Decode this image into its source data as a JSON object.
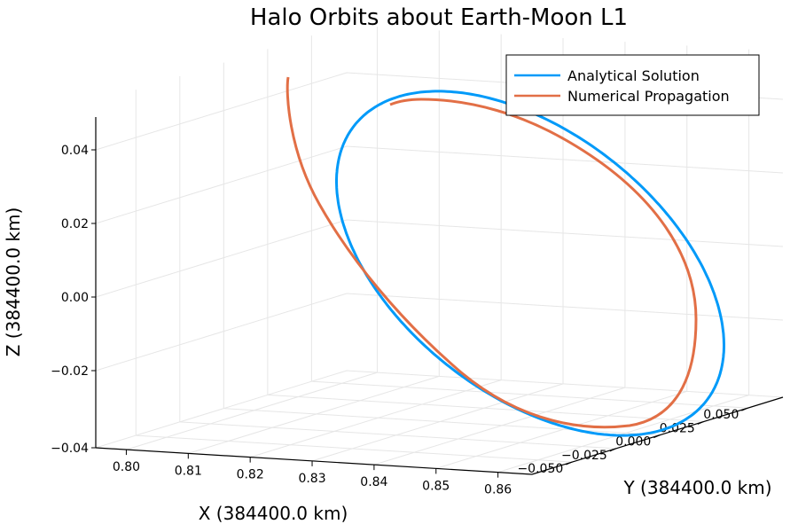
{
  "chart_data": {
    "type": "line",
    "projection": "3d",
    "title": "Halo Orbits about Earth-Moon L1",
    "xlabel": "X (384400.0 km)",
    "ylabel": "Y (384400.0 km)",
    "zlabel": "Z (384400.0 km)",
    "x_ticks": [
      "0.80",
      "0.81",
      "0.82",
      "0.83",
      "0.84",
      "0.85",
      "0.86"
    ],
    "y_ticks": [
      "−0.050",
      "−0.025",
      "0.000",
      "0.025",
      "0.050"
    ],
    "z_ticks": [
      "−0.04",
      "−0.02",
      "0.00",
      "0.02",
      "0.04"
    ],
    "grid": true,
    "legend_position": "top-right",
    "series": [
      {
        "name": "Analytical Solution",
        "color": "#009af9",
        "shape": "closed-ellipse",
        "center": [
          0.836,
          0.0,
          0.003
        ],
        "x_amplitude": 0.013,
        "y_amplitude": 0.064,
        "z_amplitude": 0.038
      },
      {
        "name": "Numerical Propagation",
        "color": "#e26f46",
        "shape": "one-and-a-half-revolution-spiral",
        "start": [
          0.825,
          0.03,
          0.048
        ],
        "revolutions": 1.35,
        "amplitude_growth": "slight"
      }
    ]
  }
}
